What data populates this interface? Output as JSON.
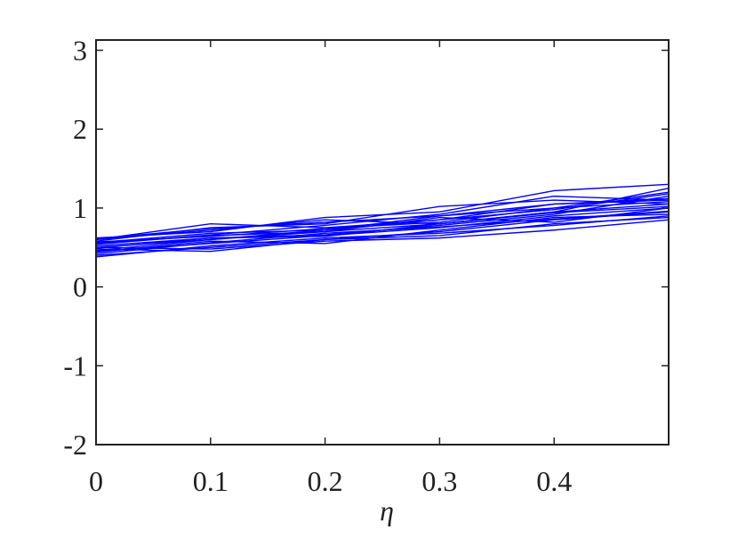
{
  "chart_data": {
    "type": "line",
    "x_label": "η",
    "x": [
      0,
      0.1,
      0.2,
      0.3,
      0.4,
      0.5
    ],
    "xlim": [
      0,
      0.5
    ],
    "xticks": [
      0,
      0.1,
      0.2,
      0.3,
      0.4
    ],
    "ylim": [
      -2,
      3.13
    ],
    "yticks": [
      -2,
      -1,
      0,
      1,
      2,
      3
    ],
    "grid": false,
    "series": [
      {
        "color": "#0000ff",
        "values": [
          0.55,
          0.65,
          0.7,
          0.8,
          0.95,
          1.05
        ]
      },
      {
        "color": "#0000ff",
        "values": [
          0.45,
          0.55,
          0.65,
          0.75,
          0.9,
          1.0
        ]
      },
      {
        "color": "#0000ff",
        "values": [
          0.6,
          0.8,
          0.75,
          0.85,
          1.05,
          1.1
        ]
      },
      {
        "color": "#0000ff",
        "values": [
          0.5,
          0.6,
          0.72,
          0.9,
          1.0,
          1.2
        ]
      },
      {
        "color": "#0000ff",
        "values": [
          0.4,
          0.5,
          0.6,
          0.7,
          0.85,
          0.95
        ]
      },
      {
        "color": "#0000ff",
        "values": [
          0.62,
          0.7,
          0.88,
          0.95,
          1.22,
          1.3
        ]
      },
      {
        "color": "#0000ff",
        "values": [
          0.48,
          0.45,
          0.6,
          0.65,
          0.8,
          0.88
        ]
      },
      {
        "color": "#0000ff",
        "values": [
          0.52,
          0.62,
          0.66,
          0.78,
          0.92,
          1.15
        ]
      },
      {
        "color": "#0000ff",
        "values": [
          0.58,
          0.75,
          0.8,
          1.02,
          1.1,
          1.05
        ]
      },
      {
        "color": "#0000ff",
        "values": [
          0.44,
          0.58,
          0.55,
          0.72,
          0.88,
          0.92
        ]
      },
      {
        "color": "#0000ff",
        "values": [
          0.56,
          0.68,
          0.72,
          0.85,
          0.98,
          1.18
        ]
      },
      {
        "color": "#0000ff",
        "values": [
          0.38,
          0.52,
          0.62,
          0.68,
          0.78,
          0.9
        ]
      },
      {
        "color": "#0000ff",
        "values": [
          0.6,
          0.72,
          0.85,
          0.8,
          0.95,
          1.25
        ]
      },
      {
        "color": "#0000ff",
        "values": [
          0.5,
          0.48,
          0.58,
          0.62,
          0.72,
          0.85
        ]
      },
      {
        "color": "#0000ff",
        "values": [
          0.54,
          0.66,
          0.78,
          0.92,
          1.15,
          1.1
        ]
      },
      {
        "color": "#0000ff",
        "values": [
          0.46,
          0.6,
          0.7,
          0.88,
          0.82,
          1.0
        ]
      },
      {
        "color": "#0000ff",
        "values": [
          0.57,
          0.64,
          0.74,
          0.82,
          1.0,
          1.08
        ]
      },
      {
        "color": "#0000ff",
        "values": [
          0.42,
          0.56,
          0.68,
          0.76,
          0.86,
          0.96
        ]
      },
      {
        "color": "#0000ff",
        "values": [
          0.61,
          0.74,
          0.82,
          0.9,
          1.05,
          1.12
        ]
      },
      {
        "color": "#0000ff",
        "values": [
          0.49,
          0.62,
          0.64,
          0.8,
          0.94,
          1.02
        ]
      }
    ]
  }
}
